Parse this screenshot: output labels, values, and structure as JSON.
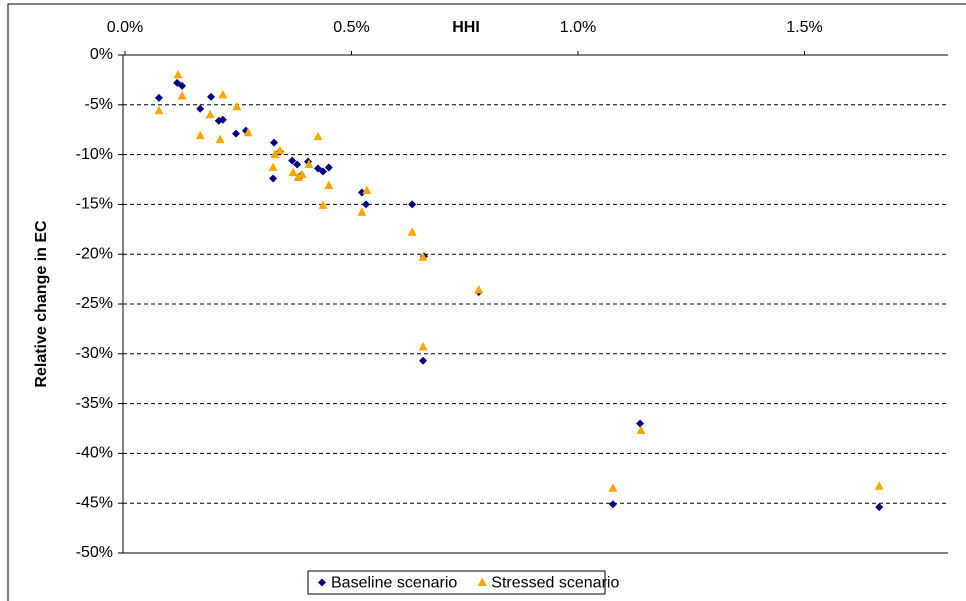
{
  "chart_data": {
    "type": "scatter",
    "xlabel": "HHI",
    "ylabel": "Relative change in EC",
    "xlim": [
      0,
      1.82
    ],
    "xticks": [
      {
        "value": 0,
        "label": "0.0%"
      },
      {
        "value": 0.5,
        "label": "0.5%"
      },
      {
        "value": 1.0,
        "label": "1.0%"
      },
      {
        "value": 1.5,
        "label": "1.5%"
      }
    ],
    "ylim": [
      -50,
      0
    ],
    "yticks": [
      {
        "value": 0,
        "label": "0%"
      },
      {
        "value": -5,
        "label": "-5%"
      },
      {
        "value": -10,
        "label": "-10%"
      },
      {
        "value": -15,
        "label": "-15%"
      },
      {
        "value": -20,
        "label": "-20%"
      },
      {
        "value": -25,
        "label": "-25%"
      },
      {
        "value": -30,
        "label": "-30%"
      },
      {
        "value": -35,
        "label": "-35%"
      },
      {
        "value": -40,
        "label": "-40%"
      },
      {
        "value": -45,
        "label": "-45%"
      },
      {
        "value": -50,
        "label": "-50%"
      }
    ],
    "grid": true,
    "legend": "bottom",
    "series": [
      {
        "name": "Baseline scenario",
        "color": "#000080",
        "marker": "diamond",
        "x": [
          0.075,
          0.115,
          0.126,
          0.166,
          0.19,
          0.207,
          0.216,
          0.245,
          0.267,
          0.329,
          0.327,
          0.342,
          0.369,
          0.38,
          0.389,
          0.404,
          0.426,
          0.437,
          0.45,
          0.523,
          0.532,
          0.634,
          0.66,
          0.658,
          0.781,
          1.137,
          1.077,
          1.665
        ],
        "values": [
          -4.3,
          -2.8,
          -3.1,
          -5.4,
          -4.2,
          -6.6,
          -6.5,
          -7.9,
          -7.6,
          -8.8,
          -12.4,
          -9.7,
          -10.6,
          -11.0,
          -12.1,
          -10.7,
          -11.4,
          -11.7,
          -11.3,
          -13.8,
          -15.0,
          -15.0,
          -20.2,
          -30.7,
          -23.8,
          -37.0,
          -45.1,
          -45.4
        ]
      },
      {
        "name": "Stressed scenario",
        "color": "#FFA500",
        "marker": "triangle",
        "x": [
          0.075,
          0.117,
          0.126,
          0.166,
          0.188,
          0.21,
          0.216,
          0.247,
          0.272,
          0.327,
          0.331,
          0.342,
          0.371,
          0.382,
          0.391,
          0.406,
          0.426,
          0.437,
          0.45,
          0.523,
          0.534,
          0.634,
          0.658,
          0.658,
          0.781,
          1.139,
          1.077,
          1.665
        ],
        "values": [
          -5.6,
          -2.0,
          -4.1,
          -8.1,
          -6.0,
          -8.5,
          -4.0,
          -5.2,
          -7.8,
          -11.3,
          -10.0,
          -9.6,
          -11.8,
          -12.3,
          -12.0,
          -11.0,
          -8.2,
          -15.1,
          -13.1,
          -15.8,
          -13.6,
          -17.8,
          -20.3,
          -29.3,
          -23.6,
          -37.7,
          -43.5,
          -43.3
        ]
      }
    ]
  }
}
